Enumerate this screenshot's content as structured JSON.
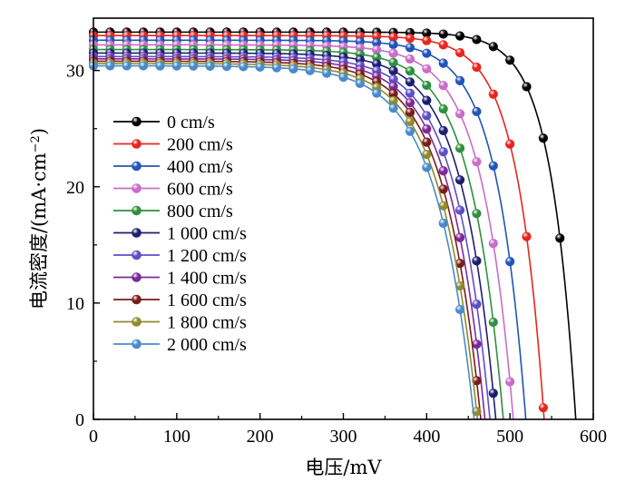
{
  "chart_data": {
    "type": "line",
    "xlabel": "电压/mV",
    "ylabel_main": "电流密度/(mA·cm",
    "ylabel_sup": "−2",
    "ylabel_close": ")",
    "xlim": [
      0,
      600
    ],
    "ylim": [
      0,
      34.5
    ],
    "x_ticks": [
      0,
      100,
      200,
      300,
      400,
      500,
      600
    ],
    "y_ticks": [
      0,
      10,
      20,
      30
    ],
    "grid": false,
    "legend_position": "left",
    "series": [
      {
        "name": "0 cm/s",
        "color": "#000000",
        "voc": 579,
        "jsc": 33.3,
        "knee": 0.052
      },
      {
        "name": "200 cm/s",
        "color": "#e8251e",
        "voc": 541,
        "jsc": 33.0,
        "knee": 0.06
      },
      {
        "name": "400 cm/s",
        "color": "#1f55b8",
        "voc": 519,
        "jsc": 32.6,
        "knee": 0.068
      },
      {
        "name": "600 cm/s",
        "color": "#c86dc8",
        "voc": 504,
        "jsc": 32.2,
        "knee": 0.075
      },
      {
        "name": "800 cm/s",
        "color": "#2e8f3e",
        "voc": 492,
        "jsc": 31.8,
        "knee": 0.08
      },
      {
        "name": "1 000 cm/s",
        "color": "#1c1f6e",
        "voc": 483,
        "jsc": 31.5,
        "knee": 0.084
      },
      {
        "name": "1 200 cm/s",
        "color": "#5b4fc8",
        "voc": 476,
        "jsc": 31.2,
        "knee": 0.088
      },
      {
        "name": "1 400 cm/s",
        "color": "#7b2a9a",
        "voc": 470,
        "jsc": 31.0,
        "knee": 0.091
      },
      {
        "name": "1 600 cm/s",
        "color": "#7a1c1c",
        "voc": 465,
        "jsc": 30.8,
        "knee": 0.094
      },
      {
        "name": "1 800 cm/s",
        "color": "#8f8a2c",
        "voc": 461,
        "jsc": 30.6,
        "knee": 0.097
      },
      {
        "name": "2 000 cm/s",
        "color": "#4b8ac9",
        "voc": 457,
        "jsc": 30.4,
        "knee": 0.1
      }
    ]
  }
}
